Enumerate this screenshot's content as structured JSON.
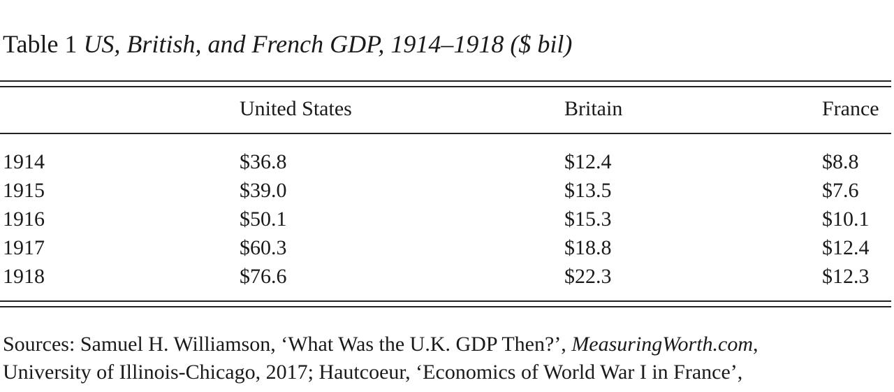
{
  "caption": {
    "label": "Table 1",
    "title": "US, British, and French GDP, 1914–1918 ($ bil)"
  },
  "table": {
    "columns": [
      "",
      "United States",
      "Britain",
      "France"
    ],
    "rows": [
      [
        "1914",
        "$36.8",
        "$12.4",
        "$8.8"
      ],
      [
        "1915",
        "$39.0",
        "$13.5",
        "$7.6"
      ],
      [
        "1916",
        "$50.1",
        "$15.3",
        "$10.1"
      ],
      [
        "1917",
        "$60.3",
        "$18.8",
        "$12.4"
      ],
      [
        "1918",
        "$76.6",
        "$22.3",
        "$12.3"
      ]
    ]
  },
  "sources": {
    "line1_prefix": "Sources: Samuel H. Williamson, ‘What Was the U.K. GDP Then?’, ",
    "line1_italic": "MeasuringWorth.com",
    "line1_suffix": ",",
    "line2": "University of Illinois-Chicago, 2017; Hautcoeur, ‘Economics of World War I in France’,"
  }
}
